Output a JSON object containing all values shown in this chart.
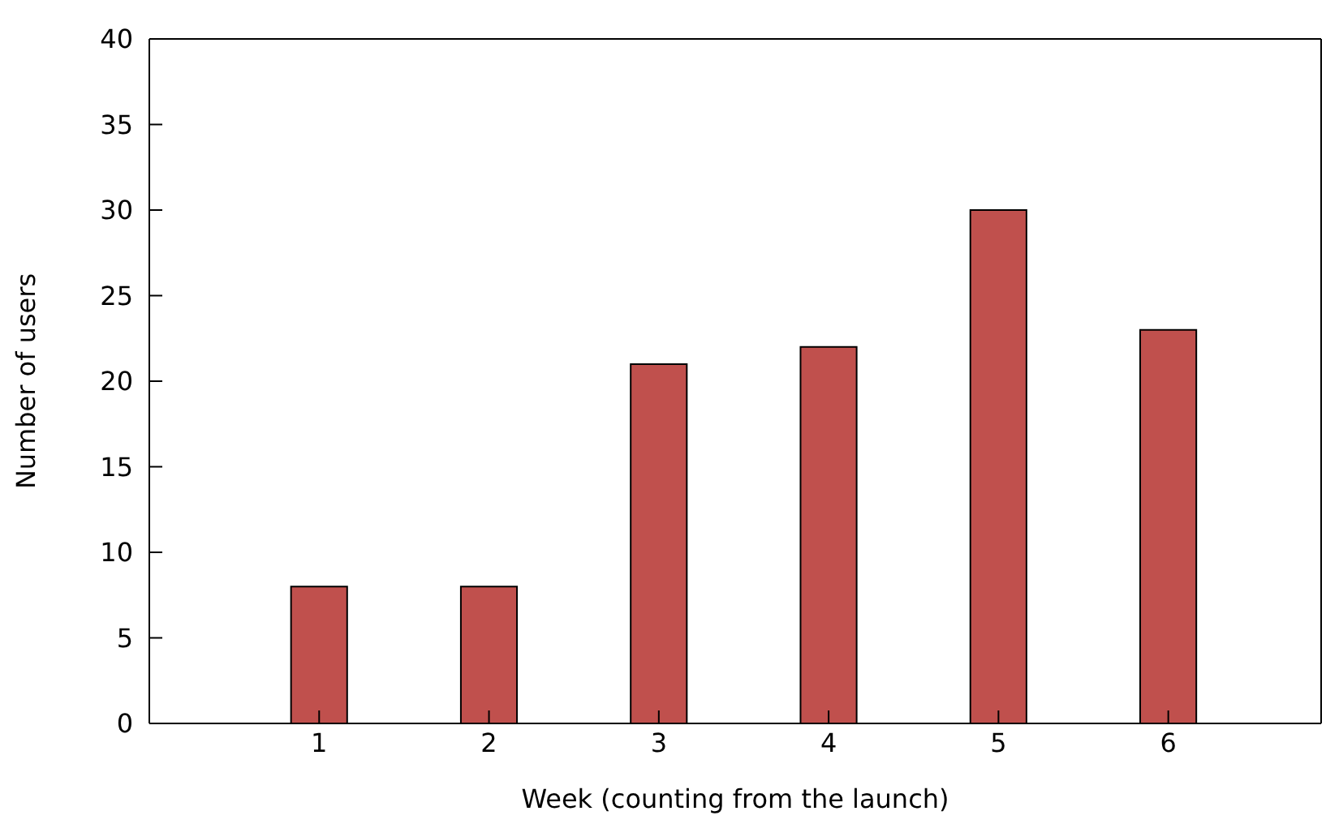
{
  "chart_data": {
    "type": "bar",
    "xlabel": "Week (counting from the launch)",
    "ylabel": "Number of users",
    "x": [
      1,
      2,
      3,
      4,
      5,
      6
    ],
    "values": [
      8,
      8,
      21,
      22,
      30,
      23
    ],
    "color": "#c0504d",
    "xlim": [
      0,
      6.9
    ],
    "xticks": [
      1,
      2,
      3,
      4,
      5,
      6
    ],
    "ylim": [
      0,
      40
    ],
    "yticks": [
      0,
      5,
      10,
      15,
      20,
      25,
      30,
      35,
      40
    ],
    "grid": false,
    "legend": false
  }
}
